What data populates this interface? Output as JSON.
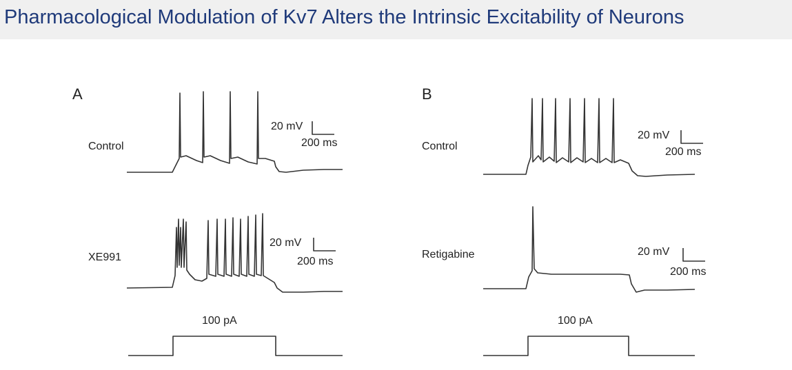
{
  "title": "Pharmacological Modulation of Kv7 Alters the Intrinsic Excitability of Neurons",
  "panels": {
    "A": {
      "letter": "A",
      "top_condition": "Control",
      "bottom_condition": "XE991",
      "top_scale_v": "20 mV",
      "top_scale_t": "200 ms",
      "bottom_scale_v": "20 mV",
      "bottom_scale_t": "200 ms",
      "stimulus": "100 pA"
    },
    "B": {
      "letter": "B",
      "top_condition": "Control",
      "bottom_condition": "Retigabine",
      "top_scale_v": "20 mV",
      "top_scale_t": "200 ms",
      "bottom_scale_v": "20 mV",
      "bottom_scale_t": "200 ms",
      "stimulus": "100 pA"
    }
  }
}
